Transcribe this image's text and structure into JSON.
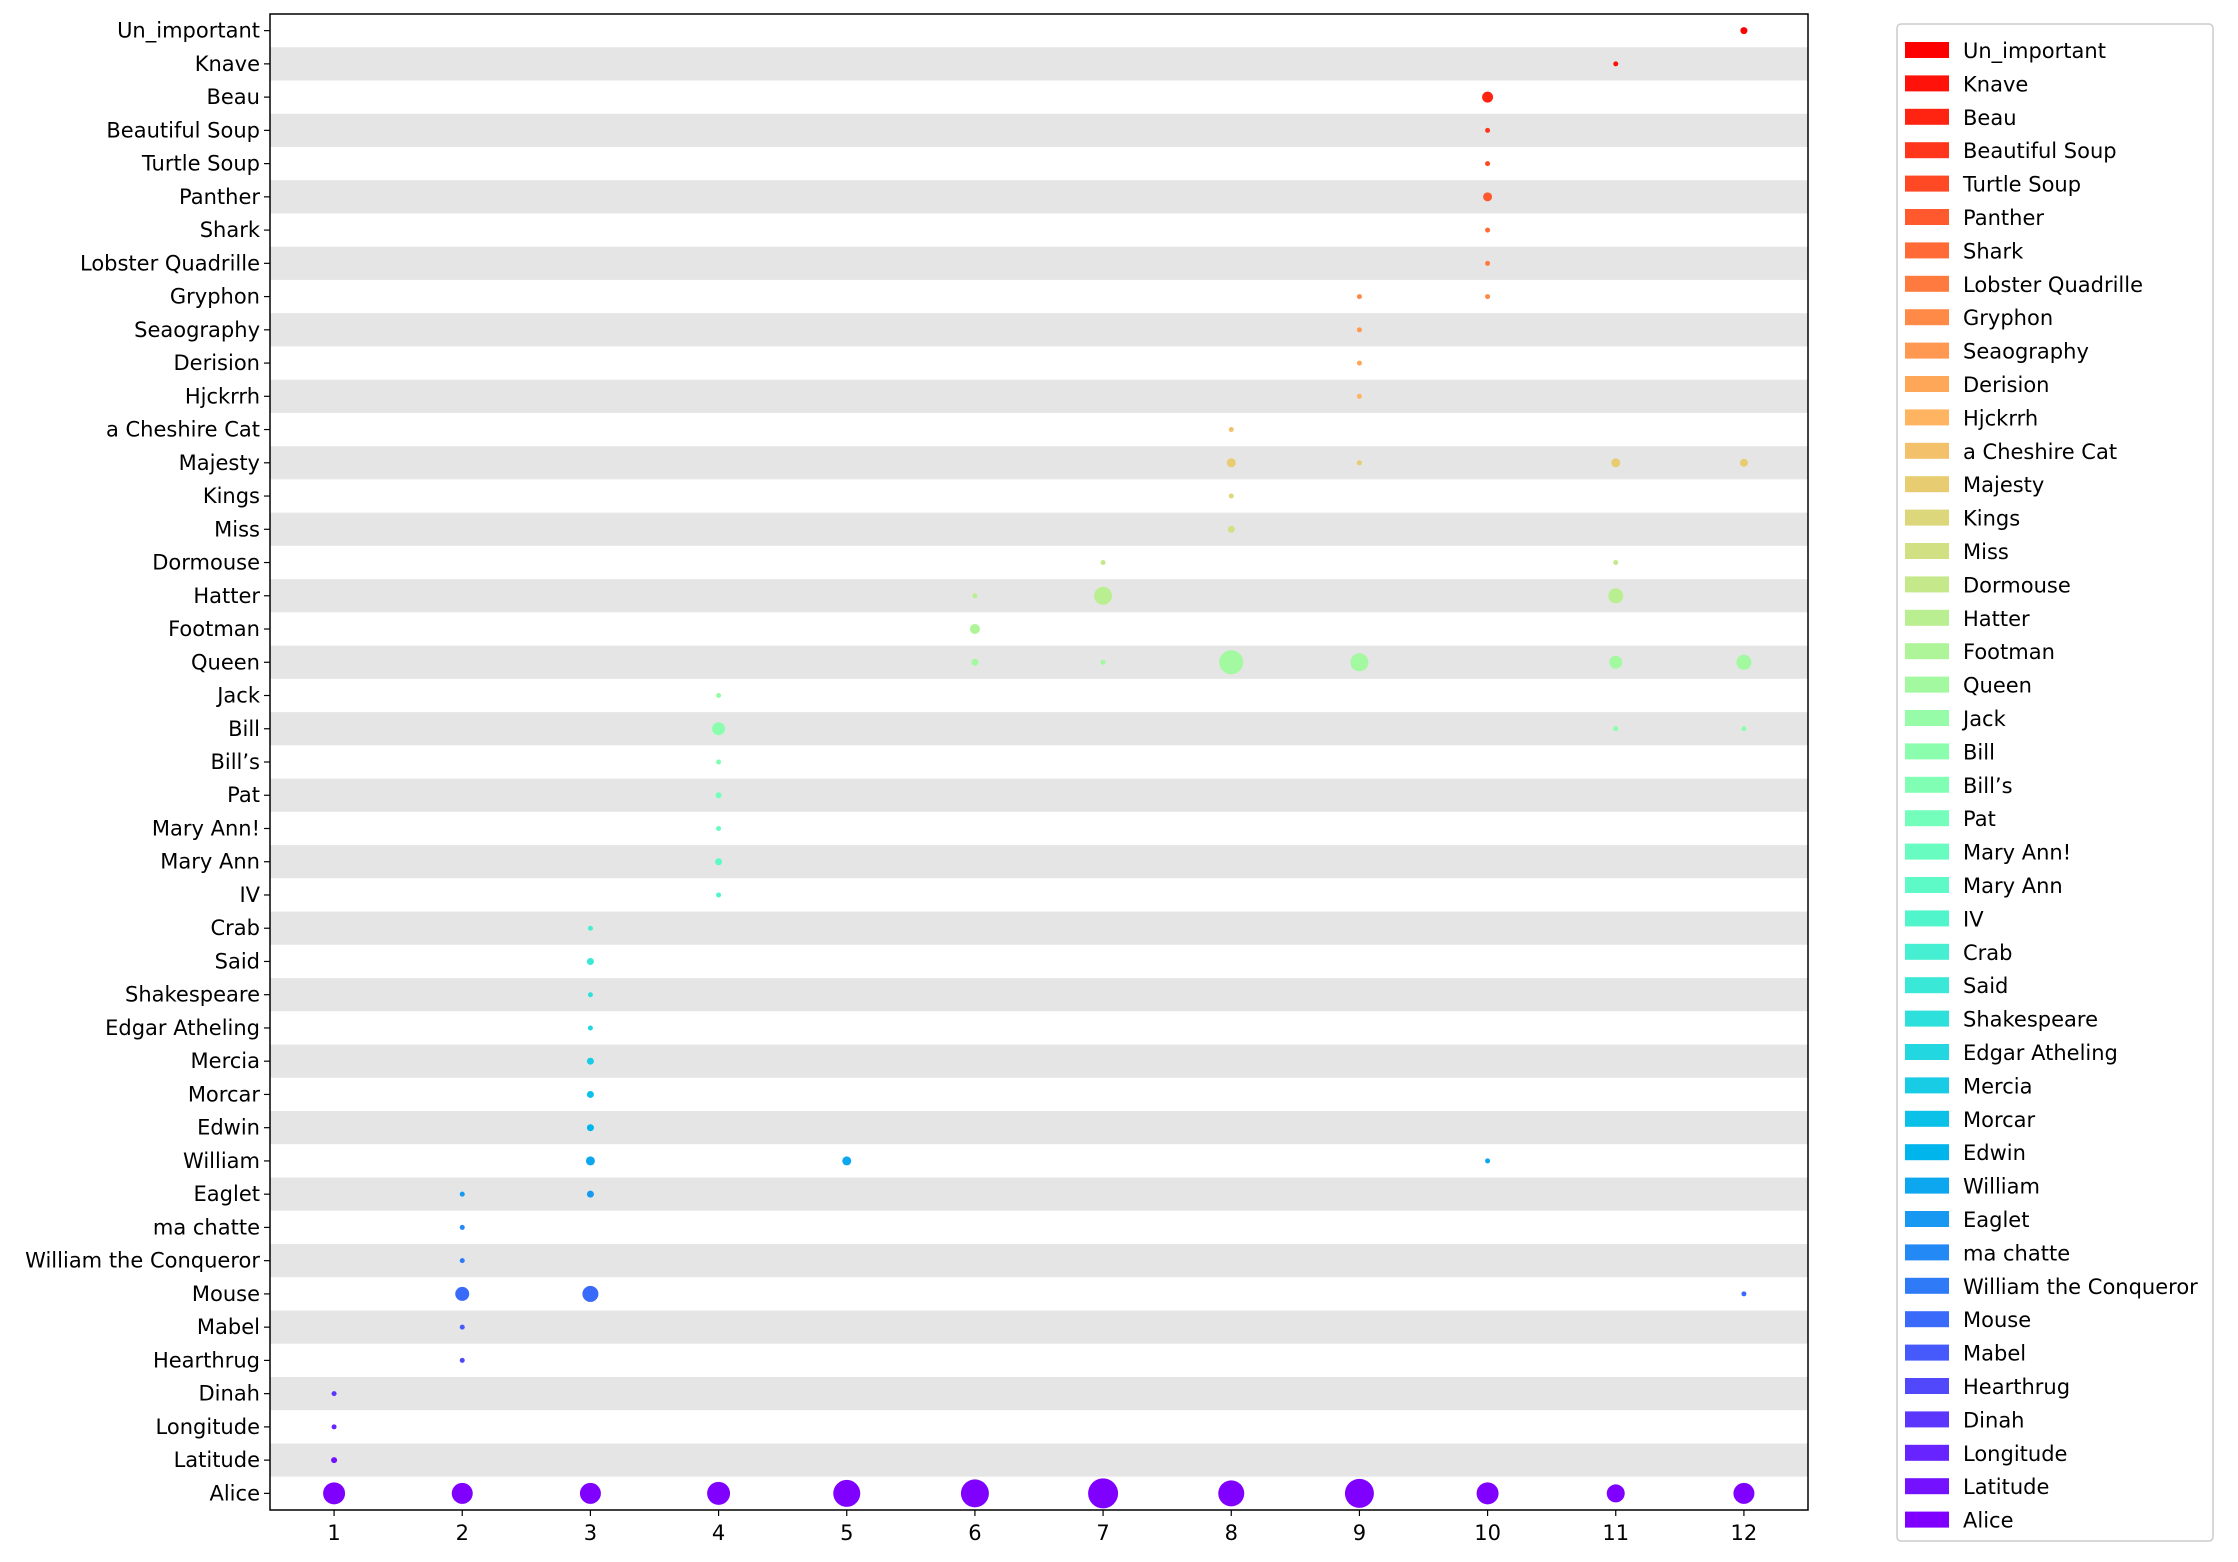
{
  "chart_data": {
    "type": "scatter",
    "title": "",
    "xlabel": "",
    "ylabel": "",
    "x_ticks": [
      1,
      2,
      3,
      4,
      5,
      6,
      7,
      8,
      9,
      10,
      11,
      12
    ],
    "xlim": [
      0.5,
      12.5
    ],
    "grid": false,
    "row_bands": "alternating white / light gray",
    "legend_placement": "outside right",
    "categories": [
      "Alice",
      "Latitude",
      "Longitude",
      "Dinah",
      "Hearthrug",
      "Mabel",
      "Mouse",
      "William the Conqueror",
      "ma chatte",
      "Eaglet",
      "William",
      "Edwin",
      "Morcar",
      "Mercia",
      "Edgar Atheling",
      "Shakespeare",
      "Said",
      "Crab",
      "IV",
      "Mary Ann",
      "Mary Ann!",
      "Pat",
      "Bill’s",
      "Bill",
      "Jack",
      "Queen",
      "Footman",
      "Hatter",
      "Dormouse",
      "Miss",
      "Kings",
      "Majesty",
      "a Cheshire Cat",
      "Hjckrrh",
      "Derision",
      "Seaography",
      "Gryphon",
      "Lobster Quadrille",
      "Shark",
      "Panther",
      "Turtle Soup",
      "Beautiful Soup",
      "Beau",
      "Knave",
      "Un_important"
    ],
    "legend": [
      "Un_important",
      "Knave",
      "Beau",
      "Beautiful Soup",
      "Turtle Soup",
      "Panther",
      "Shark",
      "Lobster Quadrille",
      "Gryphon",
      "Seaography",
      "Derision",
      "Hjckrrh",
      "a Cheshire Cat",
      "Majesty",
      "Kings",
      "Miss",
      "Dormouse",
      "Hatter",
      "Footman",
      "Queen",
      "Jack",
      "Bill",
      "Bill’s",
      "Pat",
      "Mary Ann!",
      "Mary Ann",
      "IV",
      "Crab",
      "Said",
      "Shakespeare",
      "Edgar Atheling",
      "Mercia",
      "Morcar",
      "Edwin",
      "William",
      "Eaglet",
      "ma chatte",
      "William the Conqueror",
      "Mouse",
      "Mabel",
      "Hearthrug",
      "Dinah",
      "Longitude",
      "Latitude",
      "Alice"
    ],
    "colormap": "rainbow",
    "points": [
      {
        "name": "Alice",
        "x": 1,
        "size": 22
      },
      {
        "name": "Alice",
        "x": 2,
        "size": 21
      },
      {
        "name": "Alice",
        "x": 3,
        "size": 21
      },
      {
        "name": "Alice",
        "x": 4,
        "size": 23
      },
      {
        "name": "Alice",
        "x": 5,
        "size": 27
      },
      {
        "name": "Alice",
        "x": 6,
        "size": 28
      },
      {
        "name": "Alice",
        "x": 7,
        "size": 30
      },
      {
        "name": "Alice",
        "x": 8,
        "size": 26
      },
      {
        "name": "Alice",
        "x": 9,
        "size": 29
      },
      {
        "name": "Alice",
        "x": 10,
        "size": 22
      },
      {
        "name": "Alice",
        "x": 11,
        "size": 18
      },
      {
        "name": "Alice",
        "x": 12,
        "size": 21
      },
      {
        "name": "Latitude",
        "x": 1,
        "size": 6
      },
      {
        "name": "Longitude",
        "x": 1,
        "size": 5
      },
      {
        "name": "Dinah",
        "x": 1,
        "size": 5
      },
      {
        "name": "Hearthrug",
        "x": 2,
        "size": 5
      },
      {
        "name": "Mabel",
        "x": 2,
        "size": 5
      },
      {
        "name": "Mouse",
        "x": 2,
        "size": 14
      },
      {
        "name": "Mouse",
        "x": 3,
        "size": 16
      },
      {
        "name": "Mouse",
        "x": 12,
        "size": 5
      },
      {
        "name": "William the Conqueror",
        "x": 2,
        "size": 5
      },
      {
        "name": "ma chatte",
        "x": 2,
        "size": 5
      },
      {
        "name": "Eaglet",
        "x": 2,
        "size": 5
      },
      {
        "name": "Eaglet",
        "x": 3,
        "size": 7
      },
      {
        "name": "William",
        "x": 3,
        "size": 9
      },
      {
        "name": "William",
        "x": 5,
        "size": 9
      },
      {
        "name": "William",
        "x": 10,
        "size": 5
      },
      {
        "name": "Edwin",
        "x": 3,
        "size": 7
      },
      {
        "name": "Morcar",
        "x": 3,
        "size": 7
      },
      {
        "name": "Mercia",
        "x": 3,
        "size": 7
      },
      {
        "name": "Edgar Atheling",
        "x": 3,
        "size": 5
      },
      {
        "name": "Shakespeare",
        "x": 3,
        "size": 5
      },
      {
        "name": "Said",
        "x": 3,
        "size": 7
      },
      {
        "name": "Crab",
        "x": 3,
        "size": 5
      },
      {
        "name": "IV",
        "x": 4,
        "size": 5
      },
      {
        "name": "Mary Ann",
        "x": 4,
        "size": 7
      },
      {
        "name": "Mary Ann!",
        "x": 4,
        "size": 5
      },
      {
        "name": "Pat",
        "x": 4,
        "size": 6
      },
      {
        "name": "Bill’s",
        "x": 4,
        "size": 5
      },
      {
        "name": "Bill",
        "x": 4,
        "size": 13
      },
      {
        "name": "Bill",
        "x": 11,
        "size": 5
      },
      {
        "name": "Bill",
        "x": 12,
        "size": 5
      },
      {
        "name": "Jack",
        "x": 4,
        "size": 5
      },
      {
        "name": "Queen",
        "x": 6,
        "size": 7
      },
      {
        "name": "Queen",
        "x": 7,
        "size": 5
      },
      {
        "name": "Queen",
        "x": 8,
        "size": 24
      },
      {
        "name": "Queen",
        "x": 9,
        "size": 18
      },
      {
        "name": "Queen",
        "x": 11,
        "size": 13
      },
      {
        "name": "Queen",
        "x": 12,
        "size": 15
      },
      {
        "name": "Footman",
        "x": 6,
        "size": 10
      },
      {
        "name": "Hatter",
        "x": 6,
        "size": 5
      },
      {
        "name": "Hatter",
        "x": 7,
        "size": 18
      },
      {
        "name": "Hatter",
        "x": 11,
        "size": 15
      },
      {
        "name": "Dormouse",
        "x": 7,
        "size": 5
      },
      {
        "name": "Dormouse",
        "x": 11,
        "size": 5
      },
      {
        "name": "Miss",
        "x": 8,
        "size": 7
      },
      {
        "name": "Kings",
        "x": 8,
        "size": 5
      },
      {
        "name": "Majesty",
        "x": 8,
        "size": 9
      },
      {
        "name": "Majesty",
        "x": 9,
        "size": 5
      },
      {
        "name": "Majesty",
        "x": 11,
        "size": 9
      },
      {
        "name": "Majesty",
        "x": 12,
        "size": 8
      },
      {
        "name": "a Cheshire Cat",
        "x": 8,
        "size": 5
      },
      {
        "name": "Hjckrrh",
        "x": 9,
        "size": 5
      },
      {
        "name": "Derision",
        "x": 9,
        "size": 5
      },
      {
        "name": "Seaography",
        "x": 9,
        "size": 5
      },
      {
        "name": "Gryphon",
        "x": 9,
        "size": 5
      },
      {
        "name": "Gryphon",
        "x": 10,
        "size": 5
      },
      {
        "name": "Lobster Quadrille",
        "x": 10,
        "size": 5
      },
      {
        "name": "Shark",
        "x": 10,
        "size": 5
      },
      {
        "name": "Panther",
        "x": 10,
        "size": 9
      },
      {
        "name": "Turtle Soup",
        "x": 10,
        "size": 5
      },
      {
        "name": "Beautiful Soup",
        "x": 10,
        "size": 5
      },
      {
        "name": "Beau",
        "x": 10,
        "size": 11
      },
      {
        "name": "Knave",
        "x": 11,
        "size": 5
      },
      {
        "name": "Un_important",
        "x": 12,
        "size": 7
      }
    ]
  }
}
